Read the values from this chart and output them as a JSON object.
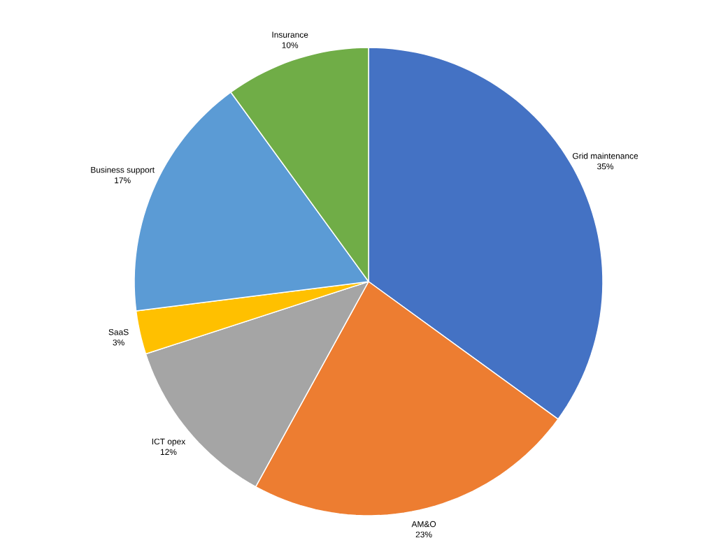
{
  "chart_data": {
    "type": "pie",
    "categories": [
      "Grid maintenance",
      "AM&O",
      "ICT opex",
      "SaaS",
      "Business support",
      "Insurance"
    ],
    "values": [
      35,
      23,
      12,
      3,
      17,
      10
    ],
    "value_labels": [
      "35%",
      "23%",
      "12%",
      "3%",
      "17%",
      "10%"
    ],
    "colors": [
      "#4472c4",
      "#ed7d31",
      "#a5a5a5",
      "#ffc000",
      "#5b9bd5",
      "#70ad47"
    ]
  }
}
